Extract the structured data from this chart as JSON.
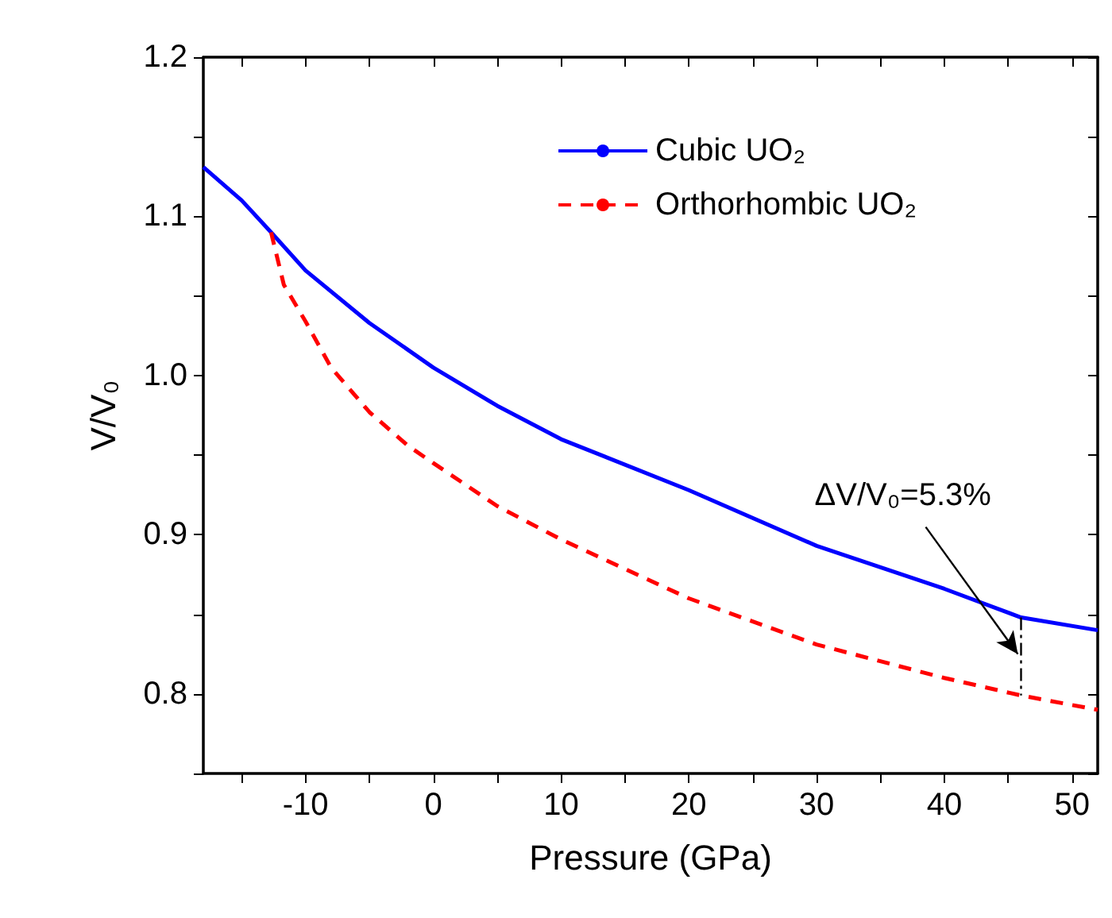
{
  "chart_data": {
    "type": "line",
    "xlabel": "Pressure (GPa)",
    "ylabel": "V/V₀",
    "xlim": [
      -18,
      52
    ],
    "ylim": [
      0.75,
      1.2
    ],
    "xticks": [
      {
        "value": -15,
        "label": null
      },
      -10,
      {
        "value": -5,
        "label": null
      },
      0,
      {
        "value": 5,
        "label": null
      },
      10,
      {
        "value": 15,
        "label": null
      },
      20,
      {
        "value": 25,
        "label": null
      },
      30,
      {
        "value": 35,
        "label": null
      },
      40,
      {
        "value": 45,
        "label": null
      },
      50
    ],
    "yticks": [
      {
        "value": 0.75,
        "label": null
      },
      0.8,
      {
        "value": 0.85,
        "label": null
      },
      0.9,
      {
        "value": 0.95,
        "label": null
      },
      {
        "value": 1.0,
        "label": "1.0"
      },
      {
        "value": 1.05,
        "label": null
      },
      1.1,
      {
        "value": 1.15,
        "label": null
      },
      1.2
    ],
    "grid": false,
    "legend": "top right",
    "marker": "none",
    "series": [
      {
        "name": "Cubic UO₂",
        "color": "#0000ff",
        "line_style": "solid",
        "x": [
          -18,
          -15,
          -12.7,
          -10,
          -5,
          0,
          5,
          10,
          20,
          30,
          40,
          46,
          52
        ],
        "values": [
          1.131,
          1.11,
          1.09,
          1.066,
          1.033,
          1.005,
          0.981,
          0.96,
          0.928,
          0.893,
          0.866,
          0.848,
          0.84
        ]
      },
      {
        "name": "Orthorhombic UO₂",
        "color": "#ff0000",
        "line_style": "dashed",
        "x": [
          -12.7,
          -11.7,
          -10,
          -8,
          -5,
          -2,
          0,
          5,
          10,
          20,
          30,
          40,
          46,
          52
        ],
        "values": [
          1.09,
          1.057,
          1.034,
          1.005,
          0.977,
          0.956,
          0.945,
          0.918,
          0.897,
          0.86,
          0.831,
          0.81,
          0.799,
          0.79
        ]
      },
      {
        "color": "#000000",
        "line_style": "dashdot",
        "x": [
          46,
          46
        ],
        "values": [
          0.848,
          0.799
        ]
      }
    ],
    "annotations": [
      {
        "text": "ΔV/V₀=5.3%",
        "x": 46,
        "y": 0.825
      }
    ]
  }
}
